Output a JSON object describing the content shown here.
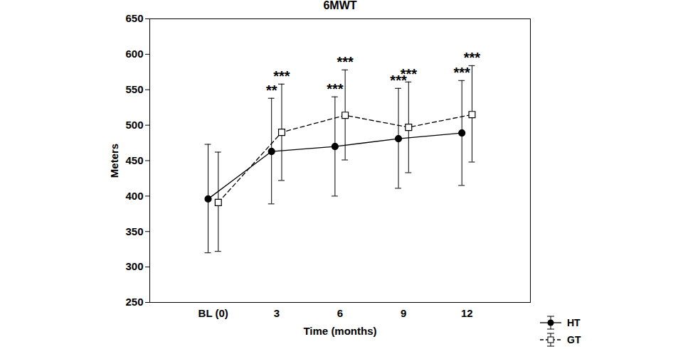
{
  "chart_data": {
    "type": "line",
    "title": "6MWT",
    "x_label": "Time (months)",
    "y_label": "Meters",
    "categories": [
      "BL (0)",
      "3",
      "6",
      "9",
      "12"
    ],
    "ylim": [
      250,
      650
    ],
    "yticks": [
      250,
      300,
      350,
      400,
      450,
      500,
      550,
      600,
      650
    ],
    "grid": false,
    "legend": "lower right",
    "series": [
      {
        "name": "HT",
        "color": "#000000",
        "marker": "circle",
        "line_style": "solid",
        "values": [
          396,
          463,
          470,
          481,
          489
        ],
        "lower": [
          320,
          389,
          400,
          411,
          415
        ],
        "upper": [
          473,
          538,
          540,
          552,
          563
        ],
        "significance": [
          null,
          "**",
          "***",
          "***",
          "***"
        ]
      },
      {
        "name": "GT",
        "color": "#000000",
        "marker": "square",
        "line_style": "dashed",
        "values": [
          391,
          490,
          514,
          497,
          515
        ],
        "lower": [
          322,
          422,
          451,
          433,
          448
        ],
        "upper": [
          462,
          558,
          578,
          561,
          584
        ],
        "significance": [
          null,
          "***",
          "***",
          "***",
          "***"
        ]
      }
    ]
  }
}
